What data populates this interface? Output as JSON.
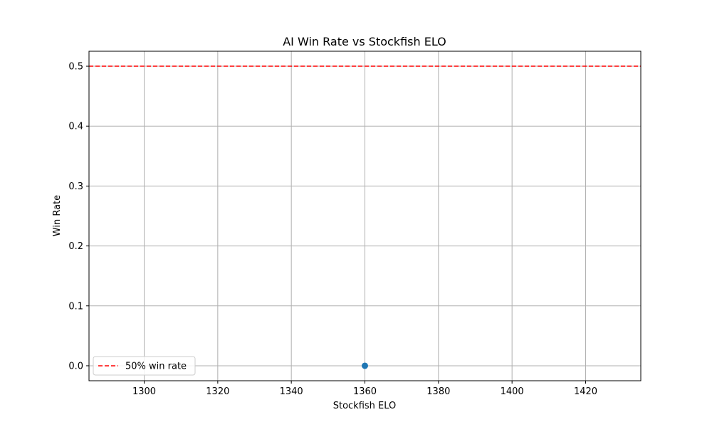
{
  "chart_data": {
    "type": "scatter",
    "title": "AI Win Rate vs Stockfish ELO",
    "xlabel": "Stockfish ELO",
    "ylabel": "Win Rate",
    "xlim": [
      1285,
      1435
    ],
    "ylim": [
      -0.025,
      0.525
    ],
    "xticks": [
      1300,
      1320,
      1340,
      1360,
      1380,
      1400,
      1420
    ],
    "yticks": [
      0.0,
      0.1,
      0.2,
      0.3,
      0.4,
      0.5
    ],
    "grid": true,
    "series": [
      {
        "x": [
          1360
        ],
        "y": [
          0.0
        ],
        "color": "#1f77b4",
        "marker": "circle"
      }
    ],
    "reference_lines": [
      {
        "name": "50% win rate",
        "y": 0.5,
        "color": "#ff0000",
        "style": "dashed"
      }
    ],
    "legend": {
      "position": "lower-left",
      "entries": [
        "50% win rate"
      ]
    }
  }
}
